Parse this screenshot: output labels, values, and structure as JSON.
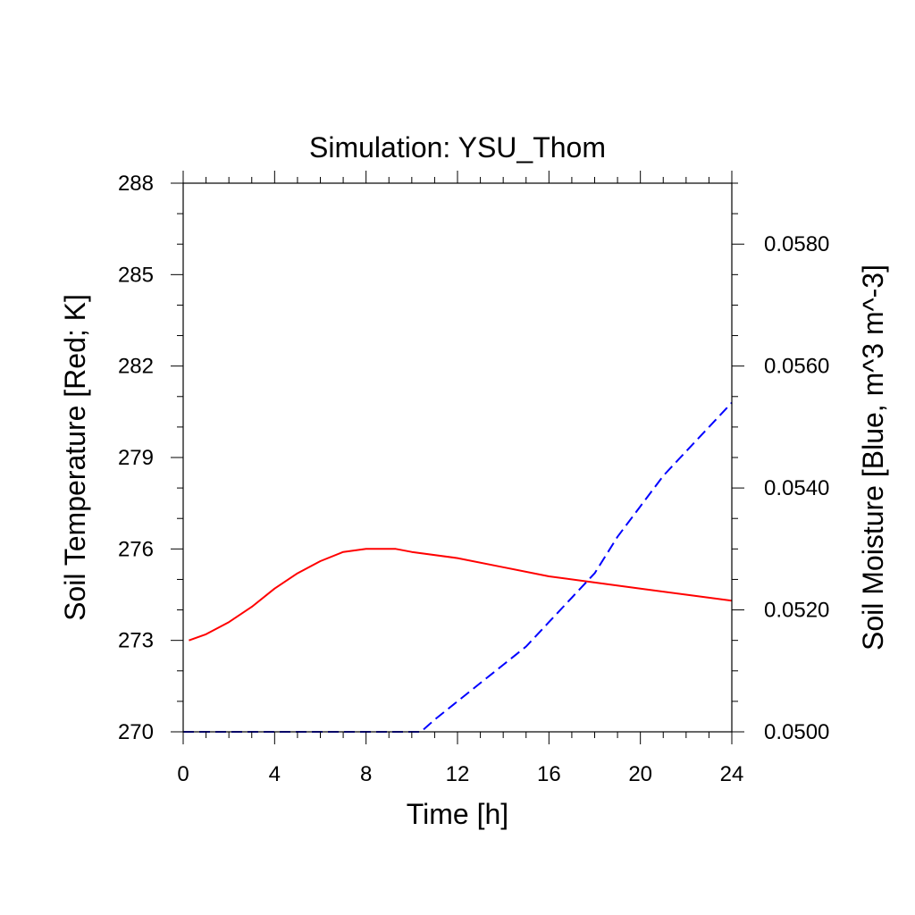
{
  "chart_data": {
    "type": "line",
    "title": "Simulation: YSU_Thom",
    "xlabel": "Time [h]",
    "ylabel_left": "Soil Temperature [Red; K]",
    "ylabel_right": "Soil Moisture [Blue, m^3 m^-3]",
    "xlim": [
      0,
      24
    ],
    "ylim_left": [
      270,
      288
    ],
    "ylim_right": [
      0.05,
      0.059
    ],
    "x_ticks": [
      0,
      4,
      8,
      12,
      16,
      20,
      24
    ],
    "y_left_ticks": [
      270,
      273,
      276,
      279,
      282,
      285,
      288
    ],
    "y_right_ticks": [
      {
        "value": 0.05,
        "label": "0.0500"
      },
      {
        "value": 0.052,
        "label": "0.0520"
      },
      {
        "value": 0.054,
        "label": "0.0540"
      },
      {
        "value": 0.056,
        "label": "0.0560"
      },
      {
        "value": 0.058,
        "label": "0.0580"
      }
    ],
    "grid": false,
    "series": [
      {
        "axis": "left",
        "color": "#ff0000",
        "style": "solid",
        "x": [
          0.25,
          1,
          2,
          3,
          4,
          5,
          6,
          7,
          8,
          9,
          9.3,
          10,
          12,
          14,
          16,
          18,
          20,
          22,
          24
        ],
        "values": [
          273.0,
          273.2,
          273.6,
          274.1,
          274.7,
          275.2,
          275.6,
          275.9,
          276.0,
          276.0,
          276.0,
          275.9,
          275.7,
          275.4,
          275.1,
          274.9,
          274.7,
          274.5,
          274.3
        ]
      },
      {
        "axis": "right",
        "color": "#0000ff",
        "style": "dashed",
        "x": [
          0,
          2,
          4,
          6,
          8,
          10,
          10.4,
          11,
          12,
          13,
          14,
          15,
          16,
          17,
          18,
          19,
          20,
          21,
          22,
          23,
          24
        ],
        "values": [
          0.05,
          0.05,
          0.05,
          0.05,
          0.05,
          0.05,
          0.05,
          0.0502,
          0.0505,
          0.0508,
          0.0511,
          0.0514,
          0.0518,
          0.0522,
          0.0526,
          0.0532,
          0.0537,
          0.0542,
          0.0546,
          0.055,
          0.0554
        ]
      }
    ]
  }
}
